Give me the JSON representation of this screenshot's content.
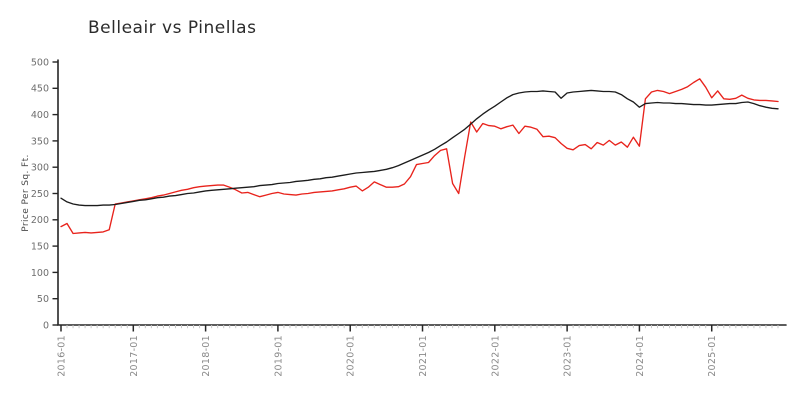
{
  "page": {
    "background": "#ffffff"
  },
  "chart_data": {
    "type": "line",
    "title": "Belleair vs Pinellas",
    "xlabel": "",
    "ylabel": "Price Per Sq. Ft.",
    "style": "xkcd-handdrawn",
    "grid": false,
    "legend_position": "none",
    "ylim": [
      0,
      500
    ],
    "y_ticks": [
      0,
      50,
      100,
      150,
      200,
      250,
      300,
      350,
      400,
      450,
      500
    ],
    "x_start": "2016-01",
    "x_end": "2025-12",
    "x_interval": "monthly",
    "x_tick_labels": [
      "2016-01",
      "2017-01",
      "2018-01",
      "2019-01",
      "2020-01",
      "2021-01",
      "2022-01",
      "2023-01",
      "2024-01",
      "2025-01"
    ],
    "axis_color": "#262626",
    "tick_label_color": "#6e6e6e",
    "minor_tick_color": "#c6c6c6",
    "series": [
      {
        "name": "Belleair",
        "color": "#e8231c",
        "values": [
          187,
          193,
          174,
          175,
          176,
          175,
          176,
          177,
          181,
          230,
          232,
          234,
          236,
          238,
          240,
          242,
          245,
          247,
          250,
          253,
          256,
          258,
          261,
          263,
          264,
          265,
          266,
          266,
          262,
          257,
          251,
          252,
          248,
          244,
          247,
          250,
          252,
          249,
          248,
          247,
          249,
          250,
          252,
          253,
          254,
          255,
          257,
          259,
          262,
          264,
          255,
          262,
          272,
          267,
          262,
          262,
          263,
          268,
          282,
          305,
          307,
          309,
          322,
          332,
          335,
          269,
          250,
          320,
          386,
          367,
          383,
          379,
          378,
          373,
          377,
          380,
          364,
          378,
          376,
          372,
          358,
          359,
          356,
          345,
          336,
          333,
          341,
          343,
          335,
          347,
          342,
          351,
          342,
          348,
          338,
          357,
          340,
          430,
          443,
          446,
          444,
          440,
          444,
          448,
          453,
          461,
          468,
          452,
          432,
          445,
          430,
          429,
          431,
          437,
          431,
          428,
          427,
          427,
          426,
          425
        ]
      },
      {
        "name": "Pinellas",
        "color": "#1c1c1c",
        "values": [
          241,
          234,
          230,
          228,
          227,
          227,
          227,
          228,
          228,
          229,
          231,
          233,
          235,
          237,
          238,
          240,
          242,
          243,
          245,
          246,
          248,
          250,
          251,
          253,
          255,
          256,
          257,
          258,
          259,
          260,
          261,
          262,
          263,
          265,
          266,
          267,
          269,
          270,
          271,
          273,
          274,
          275,
          277,
          278,
          280,
          281,
          283,
          285,
          287,
          289,
          290,
          291,
          292,
          294,
          296,
          299,
          303,
          308,
          313,
          318,
          323,
          328,
          334,
          341,
          348,
          356,
          364,
          372,
          382,
          392,
          401,
          409,
          416,
          424,
          432,
          438,
          441,
          443,
          444,
          444,
          445,
          444,
          443,
          431,
          441,
          443,
          444,
          445,
          446,
          445,
          444,
          444,
          443,
          438,
          430,
          424,
          414,
          421,
          422,
          423,
          422,
          422,
          421,
          421,
          420,
          419,
          419,
          418,
          418,
          419,
          420,
          421,
          421,
          423,
          424,
          421,
          417,
          414,
          412,
          411
        ]
      }
    ]
  }
}
